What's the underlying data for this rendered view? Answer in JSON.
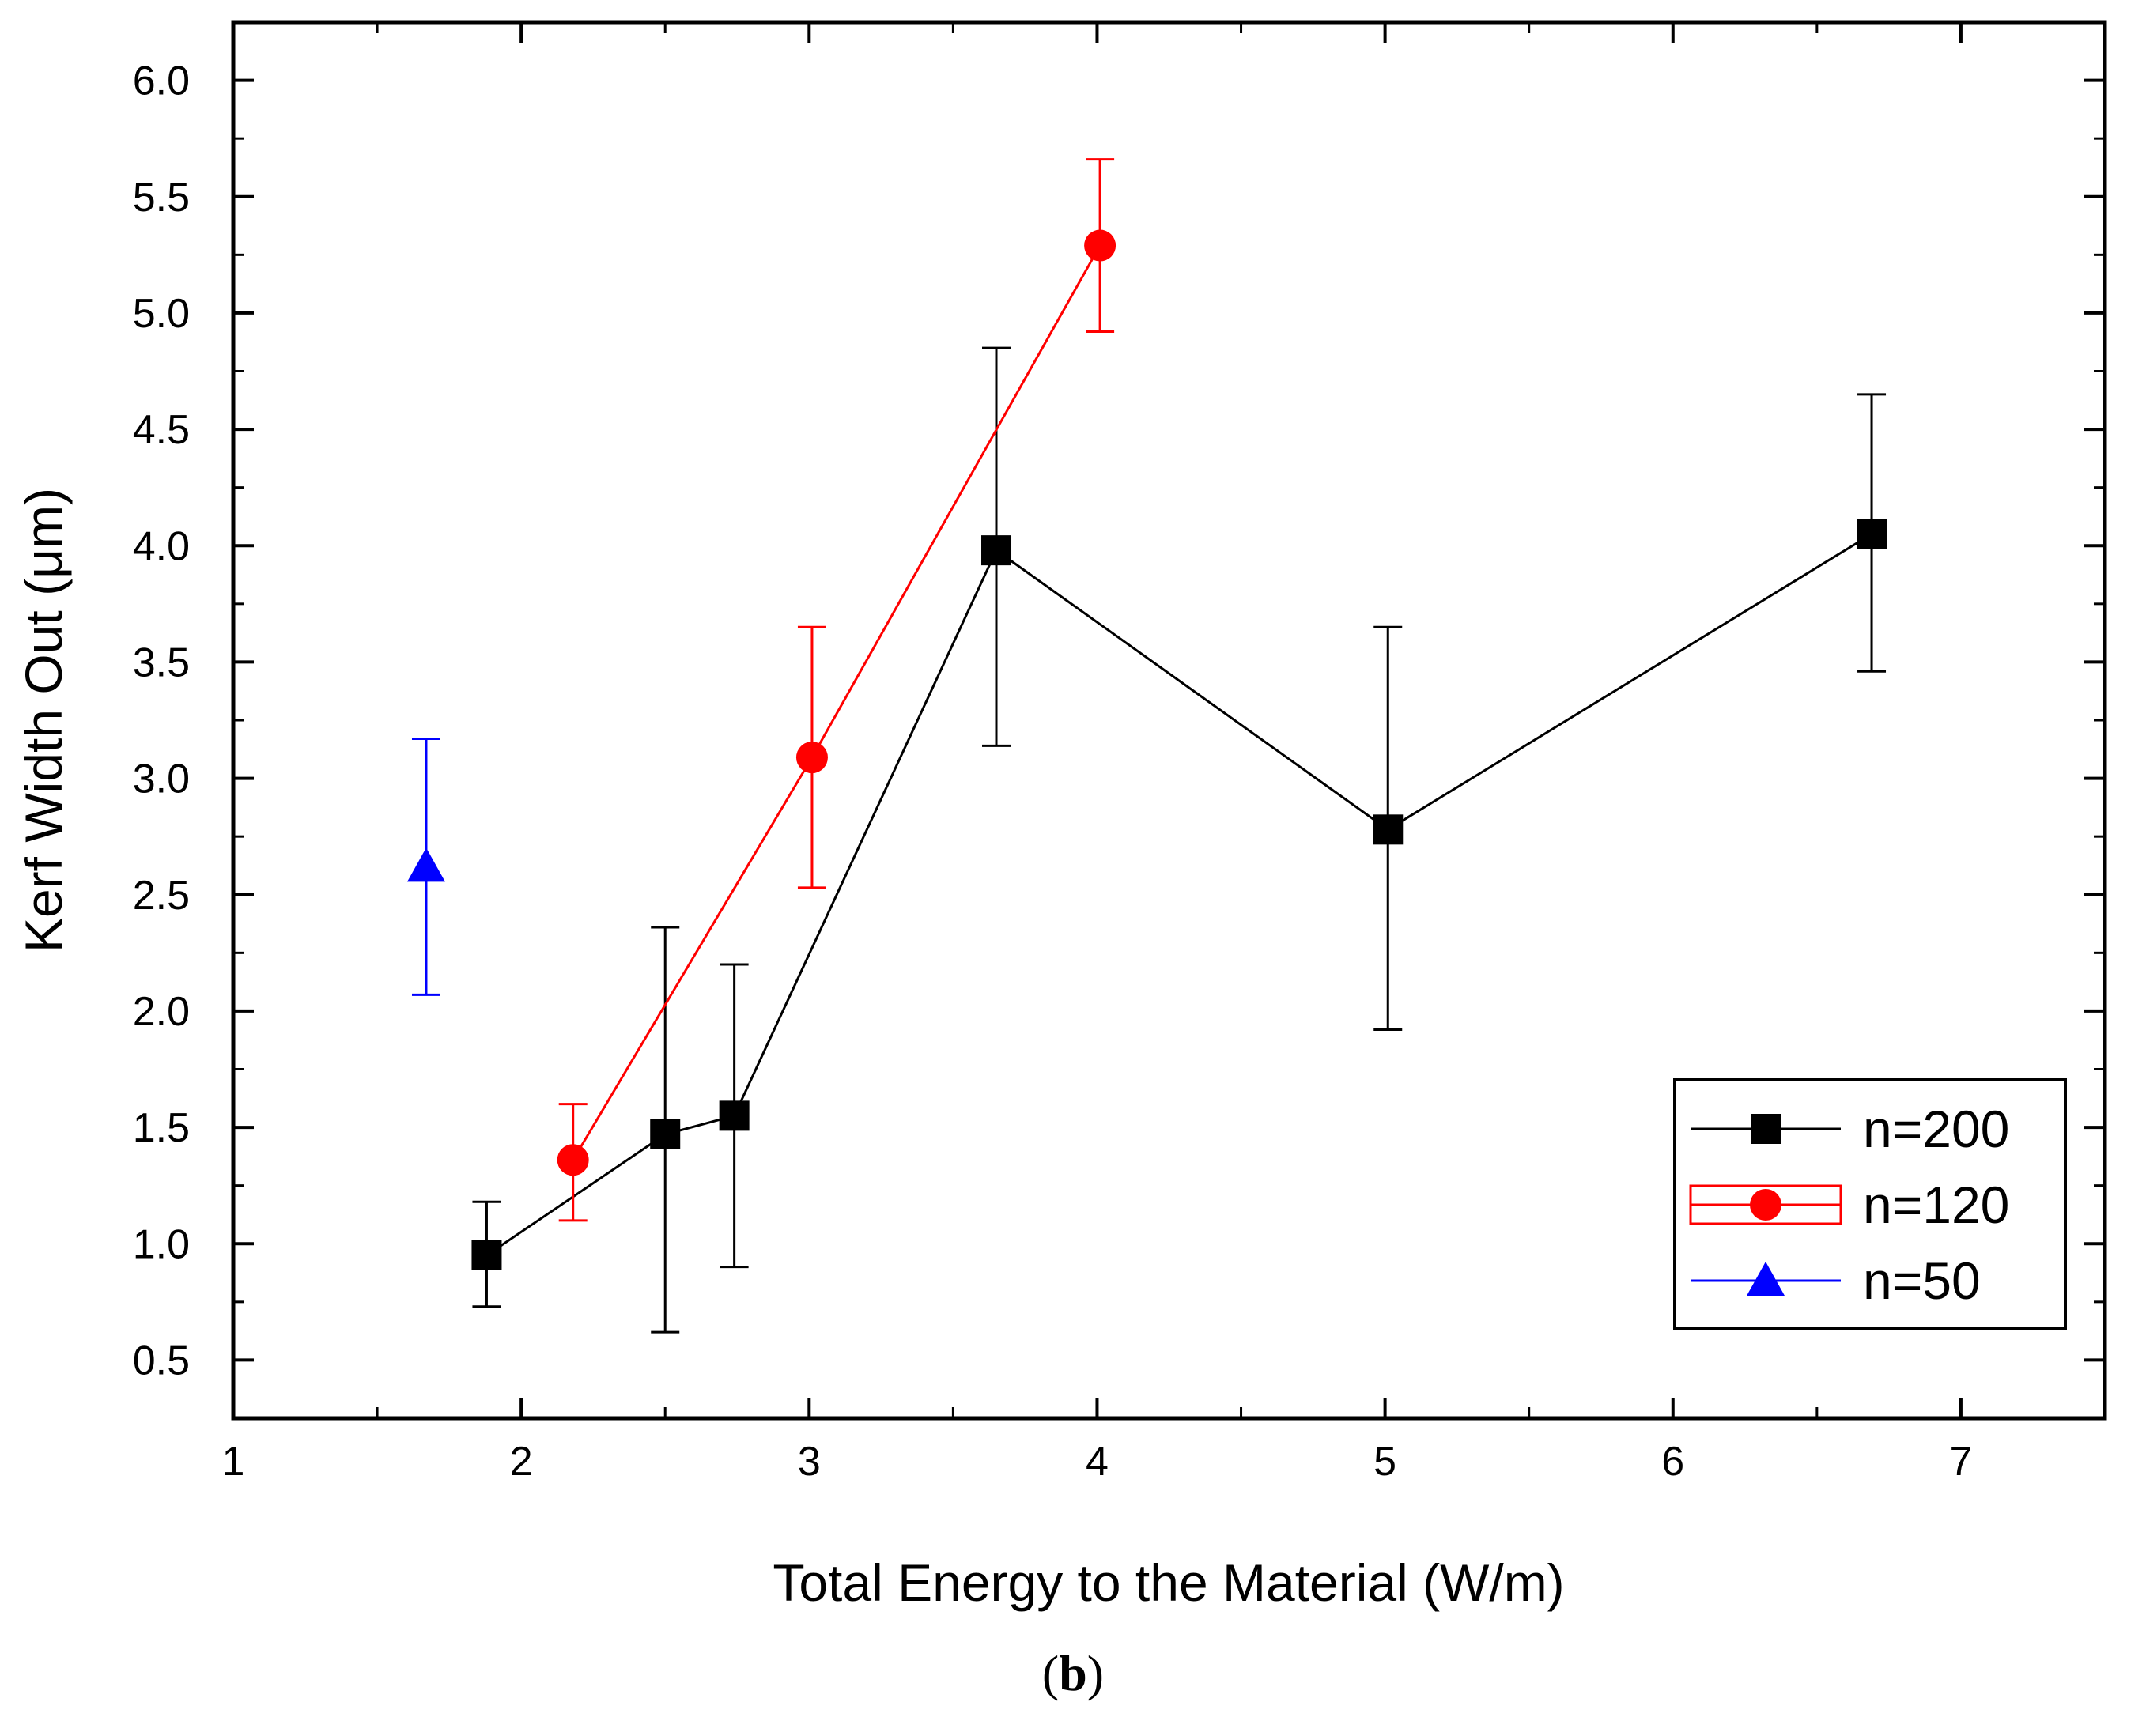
{
  "chart_data": {
    "type": "scatter",
    "title": "",
    "xlabel": "Total Energy to the Material (W/m)",
    "ylabel": "Kerf Width Out (μm)",
    "xlim": [
      1,
      7.5
    ],
    "ylim": [
      0.25,
      6.25
    ],
    "x_ticks": [
      1,
      2,
      3,
      4,
      5,
      6,
      7
    ],
    "x_tick_labels": [
      "1",
      "2",
      "3",
      "4",
      "5",
      "6",
      "7"
    ],
    "x_minor_ticks": [
      1.5,
      2.5,
      3.5,
      4.5,
      5.5,
      6.5
    ],
    "y_ticks": [
      0.5,
      1.0,
      1.5,
      2.0,
      2.5,
      3.0,
      3.5,
      4.0,
      4.5,
      5.0,
      5.5,
      6.0
    ],
    "y_tick_labels": [
      "0.5",
      "1.0",
      "1.5",
      "2.0",
      "2.5",
      "3.0",
      "3.5",
      "4.0",
      "4.5",
      "5.0",
      "5.5",
      "6.0"
    ],
    "grid": false,
    "legend_position": "bottom-right",
    "series": [
      {
        "name": "n=200",
        "color": "#000000",
        "marker": "square",
        "line": true,
        "x": [
          1.88,
          2.5,
          2.74,
          3.65,
          5.01,
          6.69
        ],
        "y": [
          0.95,
          1.47,
          1.55,
          3.98,
          2.78,
          4.05
        ],
        "err_low": [
          0.73,
          0.62,
          0.9,
          3.14,
          1.92,
          3.46
        ],
        "err_high": [
          1.18,
          2.36,
          2.2,
          4.85,
          3.65,
          4.65
        ]
      },
      {
        "name": "n=120",
        "color": "#ff0000",
        "marker": "circle",
        "line": true,
        "x": [
          2.18,
          3.01,
          4.01
        ],
        "y": [
          1.36,
          3.09,
          5.29
        ],
        "err_low": [
          1.1,
          2.53,
          4.92
        ],
        "err_high": [
          1.6,
          3.65,
          5.66
        ]
      },
      {
        "name": "n=50",
        "color": "#0000ff",
        "marker": "triangle",
        "line": false,
        "x": [
          1.67
        ],
        "y": [
          2.62
        ],
        "err_low": [
          2.07
        ],
        "err_high": [
          3.17
        ]
      }
    ]
  },
  "caption": {
    "open": "(",
    "letter": "b",
    "close": ")"
  }
}
